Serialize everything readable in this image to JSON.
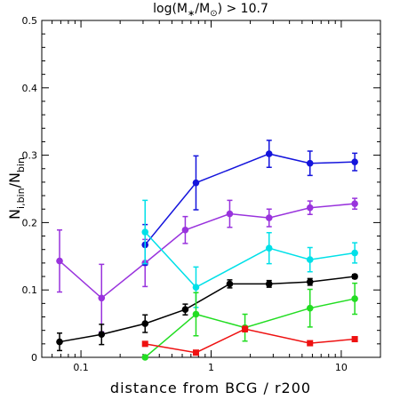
{
  "chart_data": {
    "type": "line",
    "title": [
      "log(M",
      "∗",
      "/M",
      "⊙",
      ") > 10.7"
    ],
    "xlabel": "distance from BCG / r200",
    "ylabel": [
      "N",
      "i,bin",
      "/N",
      "bin"
    ],
    "xscale": "log",
    "xlim": [
      0.05,
      20
    ],
    "ylim": [
      0,
      0.5
    ],
    "xticks": [
      0.1,
      1,
      10
    ],
    "xminorticks": [
      0.06,
      0.07,
      0.08,
      0.09,
      0.2,
      0.3,
      0.4,
      0.5,
      0.6,
      0.7,
      0.8,
      0.9,
      2,
      3,
      4,
      5,
      6,
      7,
      8,
      9
    ],
    "yticks": [
      0,
      0.1,
      0.2,
      0.3,
      0.4,
      0.5
    ],
    "yminorticks": [
      0.02,
      0.04,
      0.06,
      0.08,
      0.12,
      0.14,
      0.16,
      0.18,
      0.22,
      0.24,
      0.26,
      0.28,
      0.32,
      0.34,
      0.36,
      0.38,
      0.42,
      0.44,
      0.46,
      0.48
    ],
    "series": [
      {
        "color": "#9933dd",
        "marker": "circle",
        "x": [
          0.0685,
          0.144,
          0.311,
          0.633,
          1.39,
          2.79,
          5.75,
          12.7
        ],
        "values": [
          0.143,
          0.088,
          0.14,
          0.189,
          0.213,
          0.207,
          0.222,
          0.228
        ],
        "errors": [
          0.046,
          0.05,
          0.035,
          0.02,
          0.02,
          0.013,
          0.01,
          0.008
        ]
      },
      {
        "color": "#1414dc",
        "marker": "circle",
        "x": [
          0.311,
          0.765,
          2.79,
          5.75,
          12.7
        ],
        "values": [
          0.167,
          0.259,
          0.302,
          0.288,
          0.29
        ],
        "errors": [
          0.03,
          0.04,
          0.02,
          0.018,
          0.013
        ]
      },
      {
        "color": "#00e0e8",
        "marker": "circle",
        "x": [
          0.311,
          0.765,
          2.79,
          5.75,
          12.7
        ],
        "values": [
          0.186,
          0.104,
          0.162,
          0.145,
          0.155
        ],
        "errors": [
          0.047,
          0.03,
          0.023,
          0.018,
          0.015
        ]
      },
      {
        "color": "#000000",
        "marker": "circle",
        "x": [
          0.0685,
          0.144,
          0.311,
          0.633,
          1.39,
          2.79,
          5.75,
          12.7
        ],
        "values": [
          0.023,
          0.034,
          0.05,
          0.071,
          0.109,
          0.109,
          0.112,
          0.12
        ],
        "errors": [
          0.013,
          0.015,
          0.013,
          0.008,
          0.006,
          0.005,
          0.005,
          0.003
        ]
      },
      {
        "color": "#22dd22",
        "marker": "circle",
        "x": [
          0.311,
          0.765,
          1.82,
          5.75,
          12.7
        ],
        "values": [
          0,
          0.064,
          0.044,
          0.073,
          0.087
        ],
        "errors": [
          0,
          0.032,
          0.02,
          0.028,
          0.023
        ]
      },
      {
        "color": "#ee1111",
        "marker": "square",
        "x": [
          0.311,
          0.765,
          1.82,
          5.75,
          12.7
        ],
        "values": [
          0.02,
          0.007,
          0.042,
          0.021,
          0.027
        ],
        "errors": [
          0.003,
          0.002,
          0.004,
          0.002,
          0.002
        ]
      }
    ]
  }
}
